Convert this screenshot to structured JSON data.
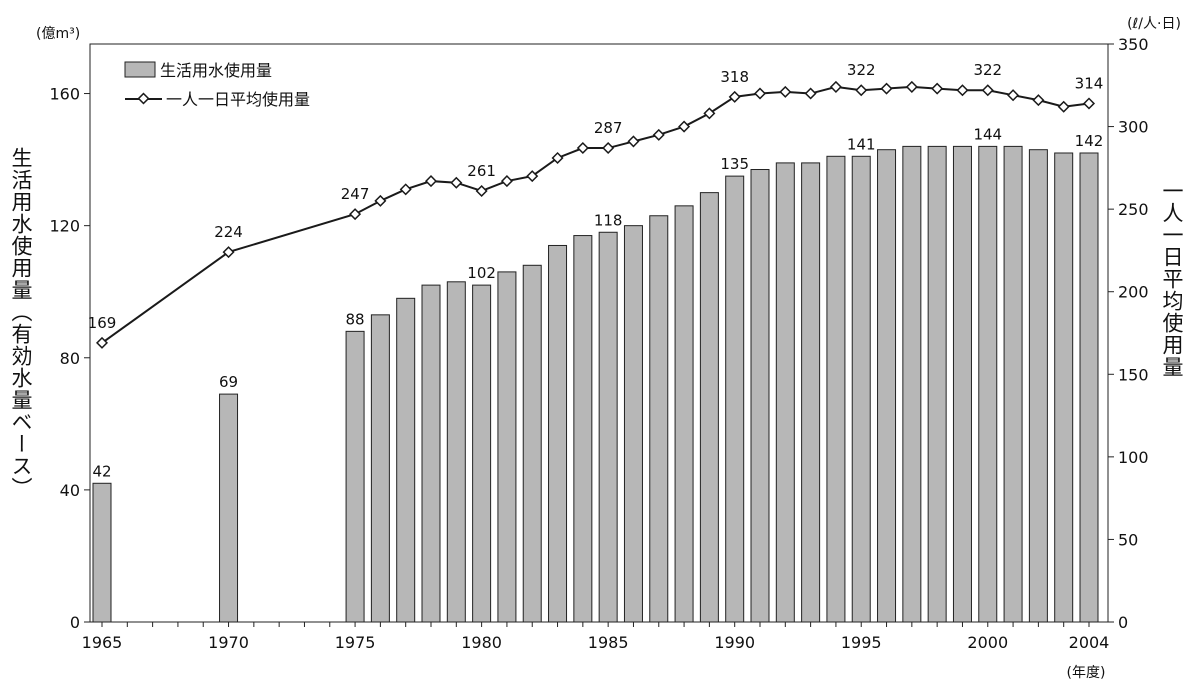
{
  "chart_data": {
    "type": "bar+line",
    "left_unit": "(億m³)",
    "right_unit": "(ℓ/人·日)",
    "x_unit": "(年度)",
    "ylabel_left": "生活用水使用量（有効水量ベース）",
    "ylabel_right": "一人一日平均使用量",
    "yticks_left": [
      "0",
      "40",
      "80",
      "120",
      "160"
    ],
    "yticks_right": [
      "0",
      "50",
      "100",
      "150",
      "200",
      "250",
      "300",
      "350"
    ],
    "ylim_left": [
      0,
      175
    ],
    "ylim_right": [
      0,
      350
    ],
    "xticks": [
      "1965",
      "1970",
      "1975",
      "1980",
      "1985",
      "1990",
      "1995",
      "2000",
      "2004"
    ],
    "xlim": [
      1965,
      2004
    ],
    "legend_position": "top-left",
    "bar_color": "#b7b7b7",
    "line_color": "#1a1a1a",
    "series": [
      {
        "name": "生活用水使用量",
        "type": "bar",
        "axis": "left",
        "x": [
          1965,
          1970,
          1975,
          1976,
          1977,
          1978,
          1979,
          1980,
          1981,
          1982,
          1983,
          1984,
          1985,
          1986,
          1987,
          1988,
          1989,
          1990,
          1991,
          1992,
          1993,
          1994,
          1995,
          1996,
          1997,
          1998,
          1999,
          2000,
          2001,
          2002,
          2003,
          2004
        ],
        "values": [
          42,
          69,
          88,
          93,
          98,
          102,
          103,
          102,
          106,
          108,
          114,
          117,
          118,
          120,
          123,
          126,
          130,
          135,
          137,
          139,
          139,
          141,
          141,
          143,
          144,
          144,
          144,
          144,
          144,
          143,
          142,
          142
        ]
      },
      {
        "name": "一人一日平均使用量",
        "type": "line",
        "axis": "right",
        "x": [
          1965,
          1970,
          1975,
          1976,
          1977,
          1978,
          1979,
          1980,
          1981,
          1982,
          1983,
          1984,
          1985,
          1986,
          1987,
          1988,
          1989,
          1990,
          1991,
          1992,
          1993,
          1994,
          1995,
          1996,
          1997,
          1998,
          1999,
          2000,
          2001,
          2002,
          2003,
          2004
        ],
        "values": [
          169,
          224,
          247,
          255,
          262,
          267,
          266,
          261,
          267,
          270,
          281,
          287,
          287,
          291,
          295,
          300,
          308,
          318,
          320,
          321,
          320,
          324,
          322,
          323,
          324,
          323,
          322,
          322,
          319,
          316,
          312,
          314
        ]
      }
    ],
    "bar_labels": [
      {
        "x": 1965,
        "value": 42,
        "text": "42"
      },
      {
        "x": 1970,
        "value": 69,
        "text": "69"
      },
      {
        "x": 1975,
        "value": 88,
        "text": "88"
      },
      {
        "x": 1980,
        "value": 102,
        "text": "102"
      },
      {
        "x": 1985,
        "value": 118,
        "text": "118"
      },
      {
        "x": 1990,
        "value": 135,
        "text": "135"
      },
      {
        "x": 1995,
        "value": 141,
        "text": "141"
      },
      {
        "x": 2000,
        "value": 144,
        "text": "144"
      },
      {
        "x": 2004,
        "value": 142,
        "text": "142"
      }
    ],
    "line_labels": [
      {
        "x": 1965,
        "value": 169,
        "text": "169"
      },
      {
        "x": 1970,
        "value": 224,
        "text": "224"
      },
      {
        "x": 1975,
        "value": 247,
        "text": "247"
      },
      {
        "x": 1980,
        "value": 261,
        "text": "261"
      },
      {
        "x": 1985,
        "value": 287,
        "text": "287"
      },
      {
        "x": 1990,
        "value": 318,
        "text": "318"
      },
      {
        "x": 1995,
        "value": 322,
        "text": "322"
      },
      {
        "x": 2000,
        "value": 322,
        "text": "322"
      },
      {
        "x": 2004,
        "value": 314,
        "text": "314"
      }
    ]
  }
}
